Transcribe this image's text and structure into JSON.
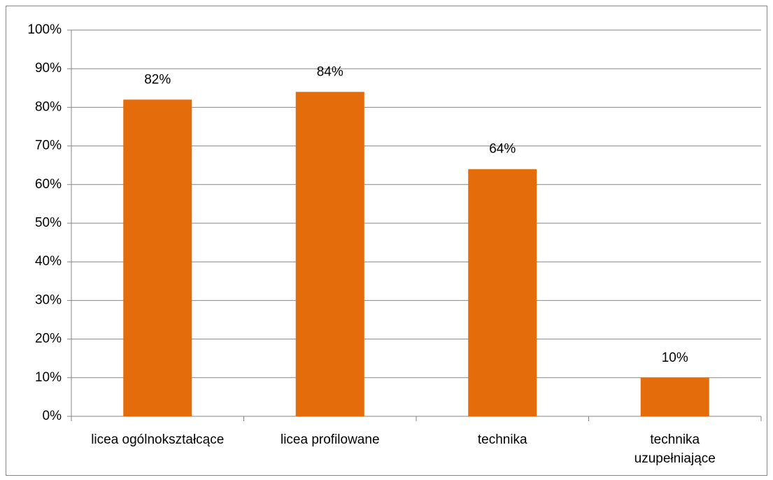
{
  "chart_data": {
    "type": "bar",
    "categories": [
      "licea ogólnokształcące",
      "licea profilowane",
      "technika",
      "technika uzupełniające"
    ],
    "values": [
      82,
      84,
      64,
      10
    ],
    "value_labels": [
      "82%",
      "84%",
      "64%",
      "10%"
    ],
    "color": "#e46c0a",
    "ylim": [
      0,
      100
    ],
    "yticks": [
      {
        "value": 0,
        "label": "0%"
      },
      {
        "value": 10,
        "label": "10%"
      },
      {
        "value": 20,
        "label": "20%"
      },
      {
        "value": 30,
        "label": "30%"
      },
      {
        "value": 40,
        "label": "40%"
      },
      {
        "value": 50,
        "label": "50%"
      },
      {
        "value": 60,
        "label": "60%"
      },
      {
        "value": 70,
        "label": "70%"
      },
      {
        "value": 80,
        "label": "80%"
      },
      {
        "value": 90,
        "label": "90%"
      },
      {
        "value": 100,
        "label": "100%"
      }
    ],
    "grid": true
  }
}
